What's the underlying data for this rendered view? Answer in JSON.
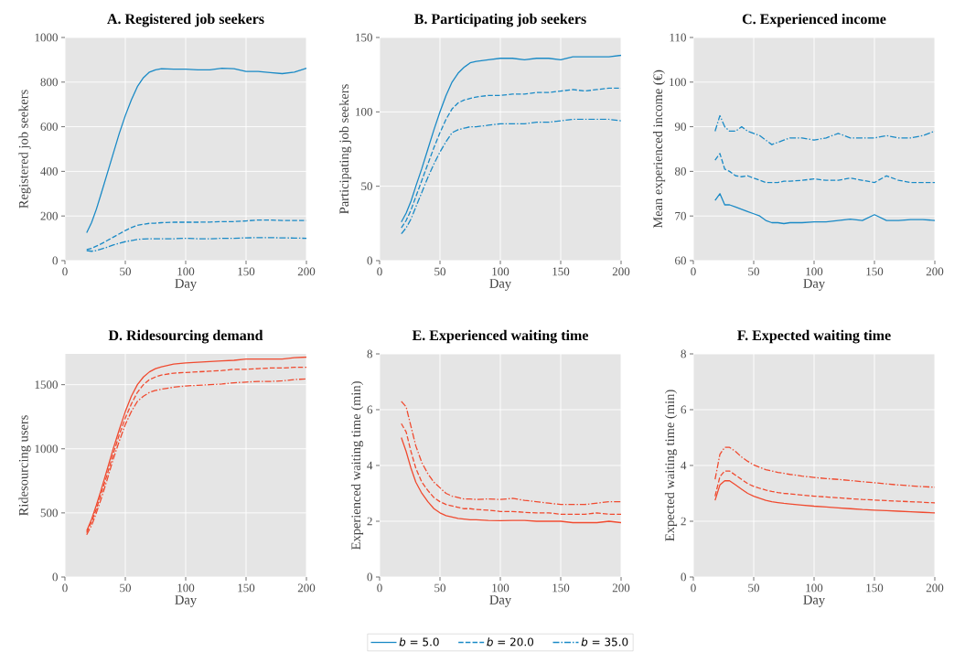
{
  "chart_data": [
    {
      "type": "line",
      "title": "A. Registered job seekers",
      "xlabel": "Day",
      "ylabel": "Registered job seekers",
      "xlim": [
        0,
        200
      ],
      "ylim": [
        0,
        1000
      ],
      "xticks": [
        0,
        50,
        100,
        150,
        200
      ],
      "yticks": [
        0,
        200,
        400,
        600,
        800,
        1000
      ],
      "grid": true,
      "x": [
        18,
        22,
        26,
        30,
        35,
        40,
        45,
        50,
        55,
        60,
        65,
        70,
        75,
        80,
        90,
        100,
        110,
        120,
        130,
        140,
        150,
        160,
        170,
        180,
        190,
        200
      ],
      "series": [
        {
          "color": "#1a8ac6",
          "line_style": "solid",
          "values": [
            125,
            170,
            230,
            300,
            390,
            480,
            570,
            650,
            720,
            780,
            820,
            845,
            855,
            860,
            858,
            858,
            855,
            855,
            862,
            860,
            848,
            848,
            843,
            838,
            845,
            862
          ]
        },
        {
          "color": "#1a8ac6",
          "line_style": "dashed",
          "values": [
            50,
            55,
            65,
            75,
            90,
            105,
            120,
            135,
            148,
            158,
            163,
            167,
            168,
            170,
            172,
            172,
            172,
            173,
            175,
            175,
            178,
            182,
            182,
            180,
            180,
            180
          ]
        },
        {
          "color": "#1a8ac6",
          "line_style": "dashdot",
          "values": [
            45,
            42,
            45,
            52,
            60,
            70,
            78,
            85,
            90,
            95,
            97,
            98,
            98,
            98,
            98,
            100,
            98,
            98,
            100,
            100,
            102,
            103,
            103,
            102,
            101,
            100
          ]
        }
      ]
    },
    {
      "type": "line",
      "title": "B. Participating job seekers",
      "xlabel": "Day",
      "ylabel": "Participating job seekers",
      "xlim": [
        0,
        200
      ],
      "ylim": [
        0,
        150
      ],
      "xticks": [
        0,
        50,
        100,
        150,
        200
      ],
      "yticks": [
        0,
        50,
        100,
        150
      ],
      "grid": true,
      "legend": "bottom",
      "x": [
        18,
        22,
        26,
        30,
        35,
        40,
        45,
        50,
        55,
        60,
        65,
        70,
        75,
        80,
        90,
        100,
        110,
        120,
        130,
        140,
        150,
        160,
        170,
        180,
        190,
        200
      ],
      "series": [
        {
          "name": "*b* = 5.0",
          "color": "#1a8ac6",
          "line_style": "solid",
          "values": [
            26,
            32,
            40,
            50,
            62,
            75,
            88,
            100,
            111,
            120,
            126,
            130,
            133,
            134,
            135,
            136,
            136,
            135,
            136,
            136,
            135,
            137,
            137,
            137,
            137,
            138
          ]
        },
        {
          "name": "*b* = 20.0",
          "color": "#1a8ac6",
          "line_style": "dashed",
          "values": [
            22,
            27,
            34,
            43,
            54,
            65,
            76,
            86,
            95,
            102,
            106,
            108,
            109,
            110,
            111,
            111,
            112,
            112,
            113,
            113,
            114,
            115,
            114,
            115,
            116,
            116
          ]
        },
        {
          "name": "*b* = 35.0",
          "color": "#1a8ac6",
          "line_style": "dashdot",
          "values": [
            18,
            22,
            28,
            36,
            46,
            56,
            65,
            73,
            80,
            86,
            88,
            89,
            90,
            90,
            91,
            92,
            92,
            92,
            93,
            93,
            94,
            95,
            95,
            95,
            95,
            94
          ]
        }
      ]
    },
    {
      "type": "line",
      "title": "C. Experienced income",
      "xlabel": "Day",
      "ylabel": "Mean experienced income (€)",
      "xlim": [
        0,
        200
      ],
      "ylim": [
        60,
        110
      ],
      "xticks": [
        0,
        50,
        100,
        150,
        200
      ],
      "yticks": [
        60,
        70,
        80,
        90,
        100,
        110
      ],
      "grid": true,
      "x": [
        18,
        22,
        26,
        30,
        35,
        40,
        45,
        50,
        55,
        60,
        65,
        70,
        75,
        80,
        90,
        100,
        110,
        120,
        130,
        140,
        150,
        160,
        170,
        180,
        190,
        200
      ],
      "series": [
        {
          "color": "#1a8ac6",
          "line_style": "solid",
          "values": [
            73.5,
            75,
            72.5,
            72.5,
            72,
            71.5,
            71,
            70.5,
            70,
            69,
            68.5,
            68.5,
            68.3,
            68.5,
            68.5,
            68.7,
            68.7,
            69,
            69.3,
            69,
            70.3,
            69,
            69,
            69.2,
            69.2,
            69
          ]
        },
        {
          "color": "#1a8ac6",
          "line_style": "dashed",
          "values": [
            82.5,
            84,
            80.5,
            80,
            79,
            78.8,
            79,
            78.5,
            78,
            77.5,
            77.5,
            77.5,
            77.8,
            77.8,
            78,
            78.3,
            78,
            78,
            78.5,
            78,
            77.5,
            79,
            78,
            77.5,
            77.5,
            77.5
          ]
        },
        {
          "color": "#1a8ac6",
          "line_style": "dashdot",
          "values": [
            89,
            92.5,
            90,
            89,
            89,
            90,
            89,
            88.5,
            88,
            87,
            86,
            86.5,
            87,
            87.5,
            87.5,
            87,
            87.5,
            88.5,
            87.5,
            87.5,
            87.5,
            88,
            87.5,
            87.5,
            88,
            89
          ]
        }
      ]
    },
    {
      "type": "line",
      "title": "D. Ridesourcing demand",
      "xlabel": "Day",
      "ylabel": "Ridesourcing users",
      "xlim": [
        0,
        200
      ],
      "ylim": [
        0,
        1740
      ],
      "xticks": [
        0,
        50,
        100,
        150,
        200
      ],
      "yticks": [
        0,
        500,
        1000,
        1500
      ],
      "grid": true,
      "x": [
        18,
        22,
        26,
        30,
        35,
        40,
        45,
        50,
        55,
        60,
        65,
        70,
        75,
        80,
        90,
        100,
        110,
        120,
        130,
        140,
        150,
        160,
        170,
        180,
        190,
        200
      ],
      "series": [
        {
          "color": "#f04a2f",
          "line_style": "solid",
          "values": [
            360,
            450,
            560,
            680,
            840,
            1000,
            1150,
            1290,
            1410,
            1500,
            1560,
            1600,
            1625,
            1640,
            1660,
            1670,
            1675,
            1680,
            1685,
            1690,
            1700,
            1700,
            1700,
            1700,
            1710,
            1715
          ]
        },
        {
          "color": "#f04a2f",
          "line_style": "dashed",
          "values": [
            345,
            430,
            530,
            650,
            800,
            960,
            1110,
            1240,
            1350,
            1440,
            1500,
            1540,
            1560,
            1575,
            1590,
            1595,
            1600,
            1605,
            1610,
            1620,
            1620,
            1625,
            1630,
            1630,
            1635,
            1635
          ]
        },
        {
          "color": "#f04a2f",
          "line_style": "dashdot",
          "values": [
            330,
            400,
            500,
            610,
            760,
            920,
            1060,
            1190,
            1290,
            1370,
            1410,
            1440,
            1455,
            1465,
            1480,
            1490,
            1495,
            1500,
            1505,
            1515,
            1520,
            1525,
            1525,
            1530,
            1540,
            1545
          ]
        }
      ]
    },
    {
      "type": "line",
      "title": "E. Experienced waiting time",
      "xlabel": "Day",
      "ylabel": "Experienced waiting time (min)",
      "xlim": [
        0,
        200
      ],
      "ylim": [
        0,
        8
      ],
      "xticks": [
        0,
        50,
        100,
        150,
        200
      ],
      "yticks": [
        0,
        2,
        4,
        6,
        8
      ],
      "grid": true,
      "x": [
        18,
        22,
        26,
        30,
        35,
        40,
        45,
        50,
        55,
        60,
        65,
        70,
        75,
        80,
        90,
        100,
        110,
        120,
        130,
        140,
        150,
        160,
        170,
        180,
        190,
        200
      ],
      "series": [
        {
          "color": "#f04a2f",
          "line_style": "solid",
          "values": [
            5,
            4.5,
            3.9,
            3.4,
            3.0,
            2.7,
            2.45,
            2.3,
            2.2,
            2.15,
            2.1,
            2.08,
            2.05,
            2.05,
            2.03,
            2.02,
            2.03,
            2.03,
            2.0,
            2.0,
            2.0,
            1.95,
            1.95,
            1.95,
            2.0,
            1.95
          ]
        },
        {
          "color": "#f04a2f",
          "line_style": "dashed",
          "values": [
            5.5,
            5.2,
            4.5,
            3.9,
            3.4,
            3.1,
            2.85,
            2.7,
            2.6,
            2.55,
            2.5,
            2.45,
            2.45,
            2.42,
            2.4,
            2.35,
            2.35,
            2.32,
            2.3,
            2.3,
            2.25,
            2.25,
            2.25,
            2.3,
            2.25,
            2.25
          ]
        },
        {
          "color": "#f04a2f",
          "line_style": "dashdot",
          "values": [
            6.3,
            6.1,
            5.4,
            4.7,
            4.1,
            3.7,
            3.4,
            3.2,
            3.0,
            2.9,
            2.85,
            2.8,
            2.8,
            2.78,
            2.8,
            2.78,
            2.82,
            2.75,
            2.7,
            2.65,
            2.6,
            2.6,
            2.6,
            2.65,
            2.7,
            2.7
          ]
        }
      ]
    },
    {
      "type": "line",
      "title": "F. Expected waiting time",
      "xlabel": "Day",
      "ylabel": "Expected waiting time (min)",
      "xlim": [
        0,
        200
      ],
      "ylim": [
        0,
        8
      ],
      "xticks": [
        0,
        50,
        100,
        150,
        200
      ],
      "yticks": [
        0,
        2,
        4,
        6,
        8
      ],
      "grid": true,
      "x": [
        18,
        22,
        26,
        30,
        35,
        40,
        45,
        50,
        55,
        60,
        65,
        70,
        75,
        80,
        90,
        100,
        110,
        120,
        130,
        140,
        150,
        160,
        170,
        180,
        190,
        200
      ],
      "series": [
        {
          "color": "#f04a2f",
          "line_style": "solid",
          "values": [
            2.75,
            3.3,
            3.45,
            3.45,
            3.3,
            3.15,
            3.0,
            2.9,
            2.82,
            2.75,
            2.7,
            2.67,
            2.64,
            2.62,
            2.58,
            2.54,
            2.51,
            2.48,
            2.45,
            2.42,
            2.4,
            2.38,
            2.36,
            2.34,
            2.32,
            2.3
          ]
        },
        {
          "color": "#f04a2f",
          "line_style": "dashed",
          "values": [
            2.9,
            3.6,
            3.8,
            3.8,
            3.65,
            3.5,
            3.35,
            3.25,
            3.18,
            3.12,
            3.07,
            3.03,
            3.0,
            2.98,
            2.94,
            2.9,
            2.87,
            2.84,
            2.81,
            2.78,
            2.76,
            2.74,
            2.72,
            2.7,
            2.68,
            2.66
          ]
        },
        {
          "color": "#f04a2f",
          "line_style": "dashdot",
          "values": [
            3.5,
            4.4,
            4.65,
            4.65,
            4.5,
            4.3,
            4.15,
            4.02,
            3.93,
            3.85,
            3.8,
            3.75,
            3.72,
            3.68,
            3.62,
            3.57,
            3.53,
            3.5,
            3.46,
            3.42,
            3.38,
            3.34,
            3.3,
            3.27,
            3.24,
            3.22
          ]
        }
      ]
    }
  ]
}
